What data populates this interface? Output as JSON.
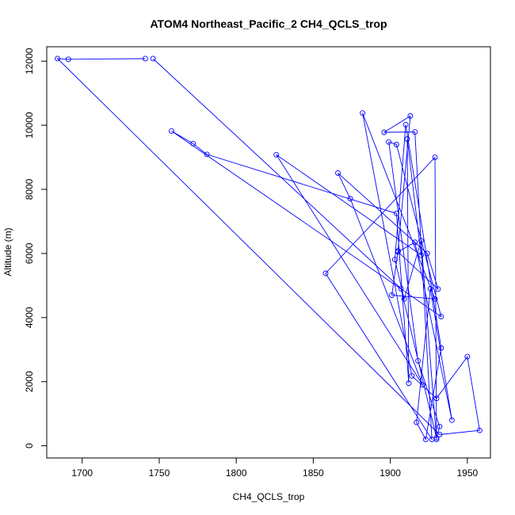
{
  "chart_data": {
    "type": "line",
    "title": "ATOM4 Northeast_Pacific_2 CH4_QCLS_trop",
    "xlabel": "CH4_QCLS_trop",
    "ylabel": "Altitude (m)",
    "xlim": [
      1677,
      1965
    ],
    "ylim": [
      -380,
      12450
    ],
    "xticks": [
      1700,
      1750,
      1800,
      1850,
      1900,
      1950
    ],
    "yticks": [
      0,
      2000,
      4000,
      6000,
      8000,
      10000,
      12000
    ],
    "xtick_labels": [
      "1700",
      "1750",
      "1800",
      "1850",
      "1900",
      "1950"
    ],
    "ytick_labels": [
      "0",
      "2000",
      "4000",
      "6000",
      "8000",
      "10000",
      "12000"
    ],
    "grid": false,
    "legend": "none",
    "colors": {
      "series": "#0000ff",
      "axes": "#000000",
      "background": "#ffffff"
    },
    "series": [
      {
        "marker": "open-circle",
        "x": [
          1741,
          1691,
          1684,
          1932,
          1958,
          1950,
          1930,
          1914,
          1882,
          1929,
          1901,
          1905,
          1913,
          1896,
          1916,
          1927,
          1858,
          1929,
          1930,
          1920,
          1909,
          1903,
          1910,
          1933,
          1923,
          1917,
          1926,
          1940,
          1916,
          1905,
          1931,
          1924,
          1866,
          1874,
          1921,
          1826,
          1920,
          1911,
          1912,
          1904,
          1781,
          1772,
          1758,
          1933,
          1904,
          1899,
          1918,
          1932,
          1930,
          1907,
          1746
        ],
        "y": [
          12080,
          12060,
          12080,
          350,
          480,
          2780,
          1480,
          2180,
          10380,
          4580,
          4700,
          6080,
          10290,
          9780,
          9790,
          200,
          5380,
          9000,
          200,
          6400,
          4580,
          5810,
          10020,
          3050,
          200,
          730,
          4900,
          800,
          6350,
          6050,
          4890,
          6000,
          8510,
          7710,
          1900,
          9080,
          5950,
          9570,
          1950,
          7250,
          9090,
          9430,
          9820,
          4030,
          9400,
          9480,
          2650,
          600,
          250,
          4900,
          12080
        ]
      }
    ]
  }
}
